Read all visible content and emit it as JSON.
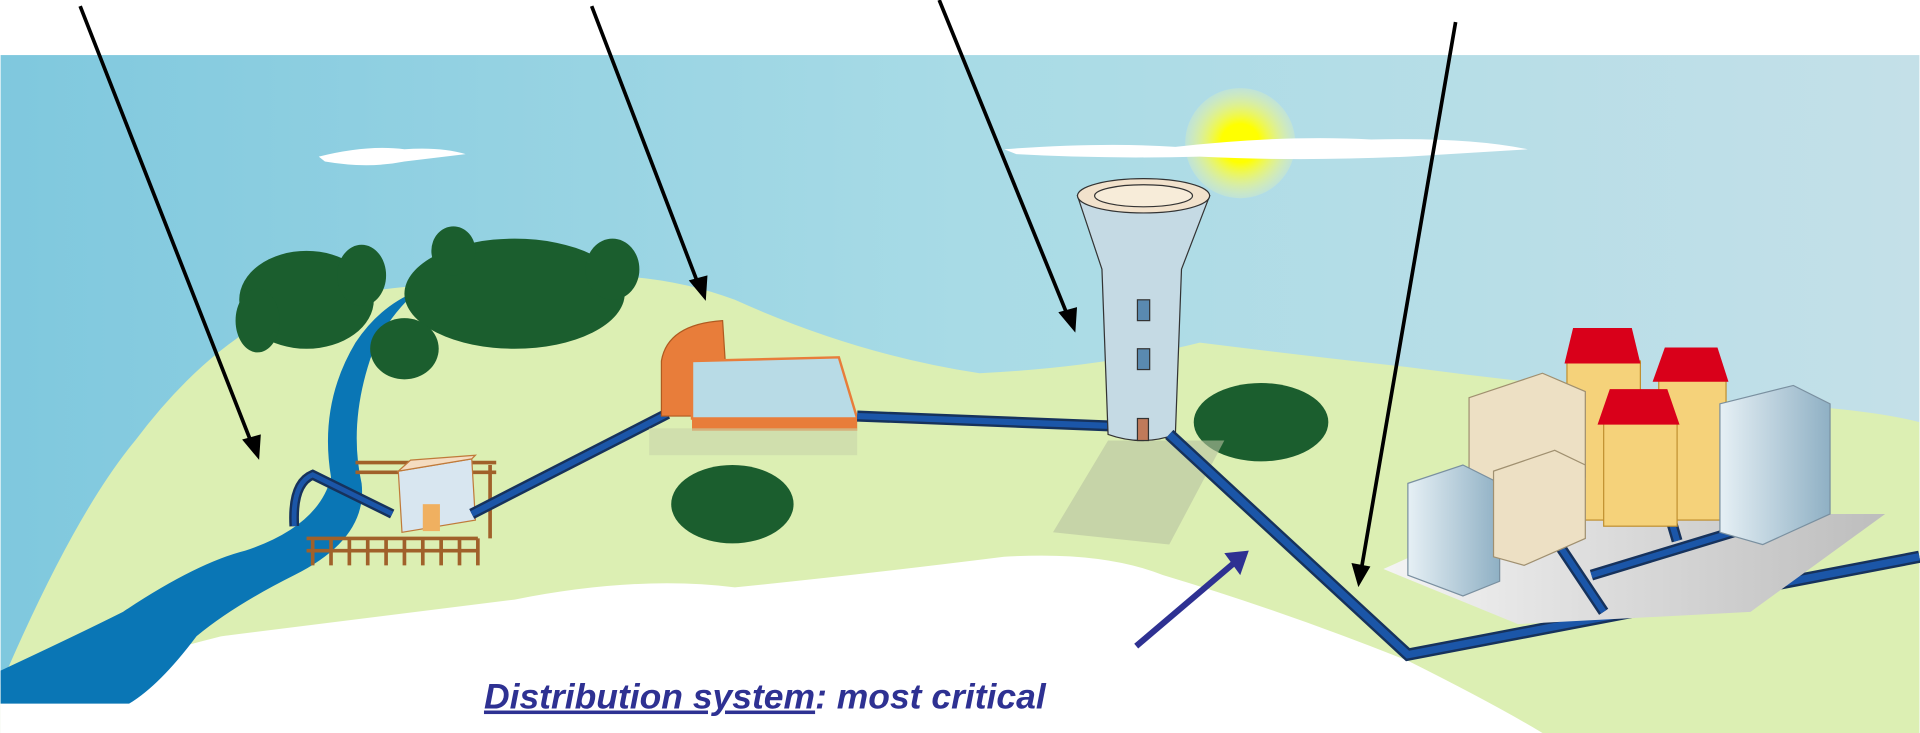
{
  "caption": {
    "underlined": "Distribution system",
    "rest": ": most critical"
  }
}
